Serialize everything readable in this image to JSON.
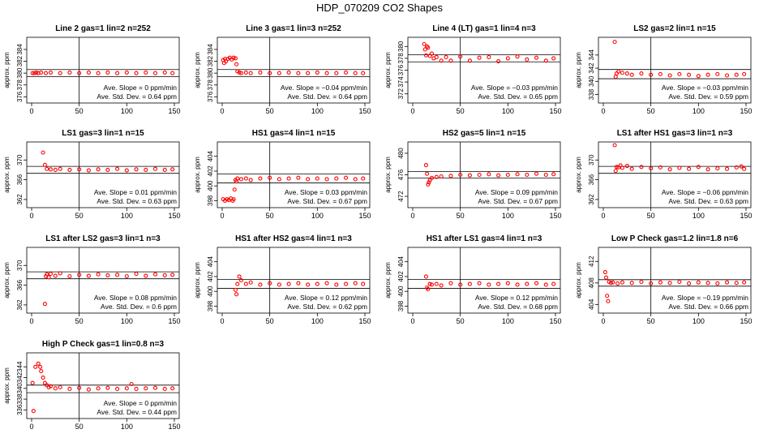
{
  "page_title": "HDP_070209  CO2 Shapes",
  "colors": {
    "points": "#ff0000",
    "axes": "#000000",
    "background": "#ffffff"
  },
  "chart_data": [
    {
      "type": "scatter",
      "title": "Line 2 gas=1 lin=2 n=252",
      "ylabel": "approx. ppm",
      "xticks": [
        0,
        50,
        100,
        150
      ],
      "yticks": [
        376,
        378,
        380,
        382,
        384
      ],
      "xlim": [
        0,
        150
      ],
      "ylim": [
        375.5,
        385.5
      ],
      "hlines": [
        380.6,
        379.4
      ],
      "vline": 50,
      "slope": "Ave. Slope =  0  ppm/min",
      "stddev": "Ave. Std. Dev. =  0.64  ppm",
      "x": [
        1,
        3,
        5,
        7,
        10,
        15,
        20,
        30,
        40,
        50,
        60,
        70,
        80,
        90,
        100,
        110,
        120,
        130,
        140,
        148
      ],
      "y": [
        380,
        380,
        380.1,
        380,
        380.1,
        380,
        380.1,
        380,
        380.1,
        380,
        380.1,
        380,
        380.1,
        380,
        380.1,
        380,
        380.1,
        380,
        380.1,
        380
      ]
    },
    {
      "type": "scatter",
      "title": "Line 3 gas=1 lin=3 n=252",
      "ylabel": "approx. ppm",
      "xticks": [
        0,
        50,
        100,
        150
      ],
      "yticks": [
        376,
        378,
        380,
        382,
        384
      ],
      "xlim": [
        0,
        150
      ],
      "ylim": [
        375.5,
        385.5
      ],
      "hlines": [
        380.6,
        379.4
      ],
      "vline": 50,
      "slope": "Ave. Slope = −0.04  ppm/min",
      "stddev": "Ave. Std. Dev. =  0.64  ppm",
      "x": [
        1,
        2,
        3,
        4,
        6,
        8,
        10,
        12,
        14,
        15,
        16,
        18,
        20,
        25,
        30,
        40,
        50,
        60,
        70,
        80,
        90,
        100,
        110,
        120,
        130,
        140,
        148
      ],
      "y": [
        382.2,
        381.7,
        382.4,
        382,
        382.4,
        382.6,
        382.3,
        382.6,
        382.5,
        381.5,
        380.3,
        380.1,
        380,
        380.1,
        380,
        380.1,
        380,
        380,
        380.1,
        380,
        380,
        380.1,
        380,
        380,
        380.1,
        380,
        380
      ]
    },
    {
      "type": "scatter",
      "title": "Line 4 (LT) gas=1 lin=4 n=3",
      "ylabel": "approx. ppm",
      "xticks": [
        0,
        50,
        100,
        150
      ],
      "yticks": [
        372,
        374,
        376,
        378,
        380
      ],
      "xlim": [
        0,
        150
      ],
      "ylim": [
        371,
        381
      ],
      "hlines": [
        378.6,
        377.4
      ],
      "vline": 50,
      "slope": "Ave. Slope = −0.03  ppm/min",
      "stddev": "Ave. Std. Dev. =  0.65  ppm",
      "x": [
        12,
        13,
        14,
        15,
        16,
        18,
        20,
        22,
        25,
        30,
        35,
        40,
        50,
        60,
        70,
        80,
        90,
        100,
        110,
        120,
        130,
        140,
        148
      ],
      "y": [
        380.4,
        379.5,
        378.5,
        380,
        379.8,
        378.4,
        378.8,
        378,
        378.2,
        377.6,
        378.2,
        377.6,
        378.3,
        377.6,
        378.1,
        378.2,
        377.5,
        378,
        378.3,
        377.8,
        378.1,
        377.6,
        378
      ]
    },
    {
      "type": "scatter",
      "title": "LS2 gas=2 lin=1 n=15",
      "ylabel": "approx. ppm",
      "xticks": [
        0,
        50,
        100,
        150
      ],
      "yticks": [
        338,
        340,
        342,
        344
      ],
      "xlim": [
        0,
        150
      ],
      "ylim": [
        337.2,
        346.2
      ],
      "hlines": [
        341.8,
        340.4
      ],
      "vline": 50,
      "slope": "Ave. Slope = −0.03  ppm/min",
      "stddev": "Ave. Std. Dev. =  0.59  ppm",
      "x": [
        12,
        13,
        14,
        16,
        20,
        25,
        30,
        40,
        50,
        60,
        70,
        80,
        90,
        100,
        110,
        120,
        130,
        140,
        148
      ],
      "y": [
        346,
        340.7,
        341.2,
        341.5,
        341.3,
        341.2,
        341,
        341.2,
        341,
        341.1,
        340.9,
        341.1,
        341,
        340.8,
        341,
        341.1,
        340.9,
        341,
        341.1
      ]
    },
    {
      "type": "scatter",
      "title": "LS1 gas=3 lin=1 n=15",
      "ylabel": "approx. ppm",
      "xticks": [
        0,
        50,
        100,
        150
      ],
      "yticks": [
        362,
        366,
        370
      ],
      "xlim": [
        0,
        150
      ],
      "ylim": [
        361,
        373
      ],
      "hlines": [
        368.7,
        367.3
      ],
      "vline": 50,
      "slope": "Ave. Slope =  0.01  ppm/min",
      "stddev": "Ave. Std. Dev. =  0.63  ppm",
      "x": [
        12,
        14,
        16,
        20,
        25,
        30,
        40,
        50,
        60,
        70,
        80,
        90,
        100,
        110,
        120,
        130,
        140,
        148
      ],
      "y": [
        371.5,
        369,
        368.2,
        368.1,
        368,
        368.2,
        368,
        368.1,
        367.9,
        368.1,
        368,
        368.2,
        367.9,
        368.1,
        368,
        368.2,
        368,
        368.1
      ]
    },
    {
      "type": "scatter",
      "title": "HS1 gas=4 lin=1 n=15",
      "ylabel": "approx. ppm",
      "xticks": [
        0,
        50,
        100,
        150
      ],
      "yticks": [
        398,
        400,
        402,
        404
      ],
      "xlim": [
        0,
        150
      ],
      "ylim": [
        397.5,
        405.5
      ],
      "hlines": [
        401.6,
        400.4
      ],
      "vline": 50,
      "slope": "Ave. Slope =  0.03  ppm/min",
      "stddev": "Ave. Std. Dev. =  0.67  ppm",
      "x": [
        1,
        3,
        5,
        7,
        9,
        11,
        12,
        13,
        14,
        15,
        16,
        20,
        25,
        30,
        40,
        50,
        60,
        70,
        80,
        90,
        100,
        110,
        120,
        130,
        140,
        148
      ],
      "y": [
        398.2,
        398,
        398.2,
        398.1,
        398.3,
        398,
        398.2,
        399.5,
        400.8,
        400.6,
        401,
        400.9,
        401,
        400.8,
        401,
        401.1,
        400.9,
        401,
        401.1,
        400.9,
        401,
        400.9,
        401,
        401.1,
        400.9,
        401
      ]
    },
    {
      "type": "scatter",
      "title": "HS2 gas=5 lin=1 n=15",
      "ylabel": "approx. ppm",
      "xticks": [
        0,
        50,
        100,
        150
      ],
      "yticks": [
        472,
        476,
        480
      ],
      "xlim": [
        0,
        150
      ],
      "ylim": [
        470.5,
        481.5
      ],
      "hlines": [
        476.6,
        475.4
      ],
      "vline": 50,
      "slope": "Ave. Slope =  0.09  ppm/min",
      "stddev": "Ave. Std. Dev. =  0.67  ppm",
      "x": [
        14,
        15,
        16,
        17,
        18,
        20,
        25,
        30,
        40,
        50,
        60,
        70,
        80,
        90,
        100,
        110,
        120,
        130,
        140,
        148
      ],
      "y": [
        477.8,
        476.2,
        474.2,
        474.6,
        475,
        475.4,
        475.6,
        475.7,
        475.8,
        476,
        475.9,
        476,
        476.1,
        475.9,
        476,
        476.1,
        476,
        476.2,
        476,
        476.1
      ]
    },
    {
      "type": "scatter",
      "title": "LS1 after HS1 gas=3 lin=1 n=3",
      "ylabel": "approx. ppm",
      "xticks": [
        0,
        50,
        100,
        150
      ],
      "yticks": [
        362,
        366,
        370
      ],
      "xlim": [
        0,
        150
      ],
      "ylim": [
        361,
        373
      ],
      "hlines": [
        368.7,
        367.3
      ],
      "vline": 50,
      "slope": "Ave. Slope = −0.06  ppm/min",
      "stddev": "Ave. Std. Dev. =  0.63  ppm",
      "x": [
        12,
        13,
        14,
        16,
        18,
        20,
        25,
        30,
        40,
        50,
        60,
        70,
        80,
        90,
        100,
        110,
        120,
        130,
        140,
        145,
        148
      ],
      "y": [
        373,
        367.8,
        368.6,
        368.5,
        368.9,
        368.4,
        368.8,
        368.2,
        368.6,
        368.3,
        368.5,
        368.1,
        368.4,
        368.2,
        368.6,
        368.1,
        368.3,
        368.2,
        368.5,
        368.7,
        368.2
      ]
    },
    {
      "type": "scatter",
      "title": "LS1 after LS2 gas=3 lin=1 n=3",
      "ylabel": "approx. ppm",
      "xticks": [
        0,
        50,
        100,
        150
      ],
      "yticks": [
        362,
        366,
        370
      ],
      "xlim": [
        0,
        150
      ],
      "ylim": [
        361,
        373
      ],
      "hlines": [
        368.7,
        367.3
      ],
      "vline": 50,
      "slope": "Ave. Slope =  0.08  ppm/min",
      "stddev": "Ave. Std. Dev. =  0.6  ppm",
      "x": [
        14,
        15,
        16,
        18,
        20,
        25,
        30,
        40,
        50,
        60,
        70,
        80,
        90,
        100,
        110,
        120,
        130,
        140,
        148
      ],
      "y": [
        362.2,
        367.8,
        368.2,
        367.6,
        368.3,
        367.9,
        368.4,
        367.8,
        368.1,
        367.9,
        368.2,
        368,
        368.1,
        367.8,
        368.3,
        367.9,
        368.2,
        368,
        368.1
      ]
    },
    {
      "type": "scatter",
      "title": "HS1 after HS2 gas=4 lin=1 n=3",
      "ylabel": "approx. ppm",
      "xticks": [
        0,
        50,
        100,
        150
      ],
      "yticks": [
        398,
        400,
        402,
        404
      ],
      "xlim": [
        0,
        150
      ],
      "ylim": [
        397.5,
        405.5
      ],
      "hlines": [
        401.6,
        400.4
      ],
      "vline": 50,
      "slope": "Ave. Slope =  0.12  ppm/min",
      "stddev": "Ave. Std. Dev. =  0.62  ppm",
      "x": [
        14,
        15,
        16,
        18,
        20,
        25,
        30,
        40,
        50,
        60,
        70,
        80,
        90,
        100,
        110,
        120,
        130,
        140,
        148
      ],
      "y": [
        400.2,
        399.6,
        401,
        402,
        401.5,
        401,
        401.2,
        400.9,
        401.1,
        400.9,
        401,
        401.1,
        400.9,
        401,
        401.1,
        400.9,
        401,
        401.1,
        401
      ]
    },
    {
      "type": "scatter",
      "title": "HS1 after LS1 gas=4 lin=1 n=3",
      "ylabel": "approx. ppm",
      "xticks": [
        0,
        50,
        100,
        150
      ],
      "yticks": [
        398,
        400,
        402,
        404
      ],
      "xlim": [
        0,
        150
      ],
      "ylim": [
        397.5,
        405.5
      ],
      "hlines": [
        401.6,
        400.4
      ],
      "vline": 50,
      "slope": "Ave. Slope =  0.12  ppm/min",
      "stddev": "Ave. Std. Dev. =  0.68  ppm",
      "x": [
        14,
        15,
        16,
        18,
        20,
        25,
        30,
        40,
        50,
        60,
        70,
        80,
        90,
        100,
        110,
        120,
        130,
        140,
        148
      ],
      "y": [
        402,
        400.5,
        400.3,
        401,
        400.9,
        401,
        400.8,
        401.1,
        400.9,
        401,
        401.1,
        400.9,
        401,
        401.1,
        400.9,
        401,
        401.1,
        400.9,
        401
      ]
    },
    {
      "type": "scatter",
      "title": "Low P Check gas=1.2 lin=1.8 n=6",
      "ylabel": "approx. ppm",
      "xticks": [
        0,
        50,
        100,
        150
      ],
      "yticks": [
        404,
        408,
        412
      ],
      "xlim": [
        0,
        150
      ],
      "ylim": [
        403,
        414
      ],
      "hlines": [
        408.6,
        407.4
      ],
      "vline": 50,
      "slope": "Ave. Slope = −0.19  ppm/min",
      "stddev": "Ave. Std. Dev. =  0.66  ppm",
      "x": [
        2,
        3,
        4,
        5,
        6,
        8,
        10,
        15,
        20,
        30,
        40,
        50,
        60,
        70,
        80,
        90,
        100,
        110,
        120,
        130,
        140,
        148
      ],
      "y": [
        410,
        409,
        405.6,
        404.6,
        408.2,
        408,
        408.1,
        407.9,
        408.1,
        408,
        408.2,
        407.9,
        408.1,
        408,
        408.2,
        407.9,
        408.1,
        408,
        407.9,
        408.1,
        408,
        408.1
      ]
    },
    {
      "type": "scatter",
      "title": "High P Check gas=1 lin=0.8 n=3",
      "ylabel": "approx. ppm",
      "xticks": [
        0,
        50,
        100,
        150
      ],
      "yticks": [
        336,
        338,
        340,
        342,
        344
      ],
      "xlim": [
        0,
        150
      ],
      "ylim": [
        335,
        346
      ],
      "hlines": [
        340.6,
        339.2
      ],
      "vline": 50,
      "slope": "Ave. Slope =  0  ppm/min",
      "stddev": "Ave. Std. Dev. =  0.44  ppm",
      "x": [
        1,
        2,
        4,
        7,
        9,
        10,
        12,
        14,
        16,
        18,
        20,
        25,
        30,
        40,
        50,
        60,
        70,
        80,
        90,
        100,
        105,
        110,
        120,
        130,
        140,
        148
      ],
      "y": [
        341,
        335.8,
        344,
        344.6,
        344,
        343.2,
        342,
        341,
        340.6,
        340.2,
        340.4,
        340,
        340.2,
        339.9,
        340.1,
        339.8,
        340,
        340.1,
        339.9,
        340,
        340.8,
        339.9,
        340,
        340.1,
        339.9,
        340
      ]
    }
  ]
}
